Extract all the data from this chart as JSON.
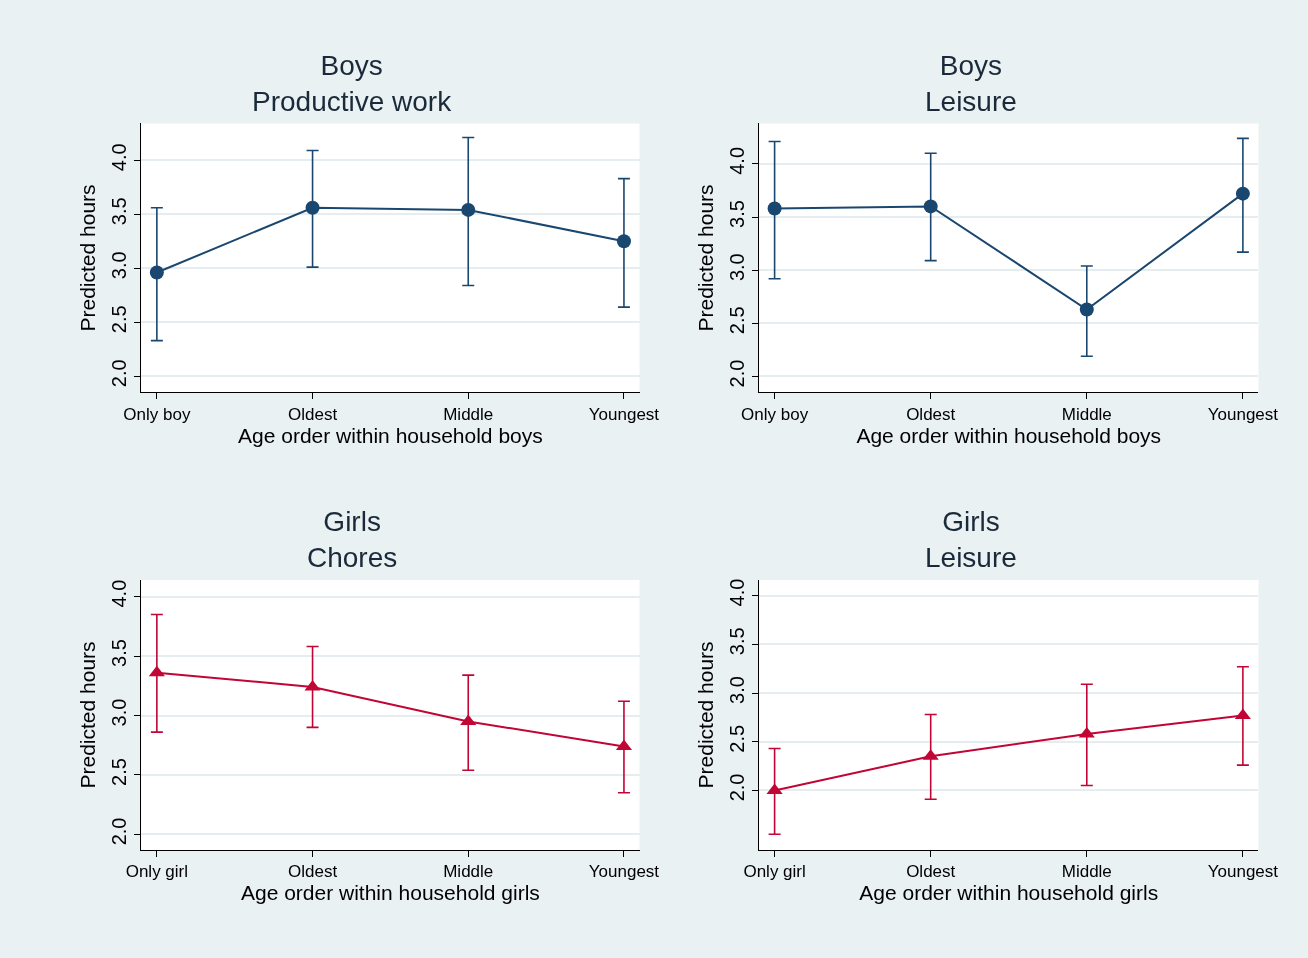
{
  "chart_data": [
    {
      "type": "line",
      "title": "Boys\nProductive work",
      "xlabel": "Age order within household boys",
      "ylabel": "Predicted hours",
      "categories": [
        "Only boy",
        "Oldest",
        "Middle",
        "Youngest"
      ],
      "marker": "circle",
      "grid": "y",
      "ylim": [
        1.85,
        4.34
      ],
      "yticks": [
        {
          "value": 2,
          "label": "2.0"
        },
        {
          "value": 2.5,
          "label": "2.5"
        },
        {
          "value": 3,
          "label": "3.0"
        },
        {
          "value": 3.5,
          "label": "3.5"
        },
        {
          "value": 4,
          "label": "4.0"
        }
      ],
      "series": [
        {
          "color": "#1a476f",
          "values": [
            2.96,
            3.56,
            3.54,
            3.25
          ],
          "errors": [
            [
              2.33,
              3.56
            ],
            [
              3.01,
              4.09
            ],
            [
              2.84,
              4.21
            ],
            [
              2.64,
              3.83
            ]
          ]
        }
      ]
    },
    {
      "type": "line",
      "title": "Boys\nLeisure",
      "xlabel": "Age order within household boys",
      "ylabel": "Predicted hours",
      "categories": [
        "Only boy",
        "Oldest",
        "Middle",
        "Youngest"
      ],
      "marker": "circle",
      "grid": "y",
      "ylim": [
        1.85,
        4.38
      ],
      "yticks": [
        {
          "value": 2,
          "label": "2.0"
        },
        {
          "value": 2.5,
          "label": "2.5"
        },
        {
          "value": 3,
          "label": "3.0"
        },
        {
          "value": 3.5,
          "label": "3.5"
        },
        {
          "value": 4,
          "label": "4.0"
        }
      ],
      "series": [
        {
          "color": "#1a476f",
          "values": [
            3.58,
            3.6,
            2.63,
            3.72
          ],
          "errors": [
            [
              2.92,
              4.21
            ],
            [
              3.09,
              4.1
            ],
            [
              2.19,
              3.04
            ],
            [
              3.17,
              4.24
            ]
          ]
        }
      ]
    },
    {
      "type": "line",
      "title": "Girls\nChores",
      "xlabel": "Age order within household girls",
      "ylabel": "Predicted hours",
      "categories": [
        "Only girl",
        "Oldest",
        "Middle",
        "Youngest"
      ],
      "marker": "triangle",
      "grid": "y",
      "ylim": [
        1.87,
        4.14
      ],
      "yticks": [
        {
          "value": 2,
          "label": "2.0"
        },
        {
          "value": 2.5,
          "label": "2.5"
        },
        {
          "value": 3,
          "label": "3.0"
        },
        {
          "value": 3.5,
          "label": "3.5"
        },
        {
          "value": 4,
          "label": "4.0"
        }
      ],
      "series": [
        {
          "color": "#c10534",
          "values": [
            3.36,
            3.24,
            2.95,
            2.74
          ],
          "errors": [
            [
              2.86,
              3.85
            ],
            [
              2.9,
              3.58
            ],
            [
              2.54,
              3.34
            ],
            [
              2.35,
              3.12
            ]
          ]
        }
      ]
    },
    {
      "type": "line",
      "title": "Girls\nLeisure",
      "xlabel": "Age order within household girls",
      "ylabel": "Predicted hours",
      "categories": [
        "Only girl",
        "Oldest",
        "Middle",
        "Youngest"
      ],
      "marker": "triangle",
      "grid": "y",
      "ylim": [
        1.39,
        4.16
      ],
      "yticks": [
        {
          "value": 2,
          "label": "2.0"
        },
        {
          "value": 2.5,
          "label": "2.5"
        },
        {
          "value": 3,
          "label": "3.0"
        },
        {
          "value": 3.5,
          "label": "3.5"
        },
        {
          "value": 4,
          "label": "4.0"
        }
      ],
      "series": [
        {
          "color": "#c10534",
          "values": [
            2.0,
            2.35,
            2.58,
            2.77
          ],
          "errors": [
            [
              1.55,
              2.43
            ],
            [
              1.91,
              2.78
            ],
            [
              2.05,
              3.09
            ],
            [
              2.26,
              3.27
            ]
          ]
        }
      ]
    }
  ]
}
